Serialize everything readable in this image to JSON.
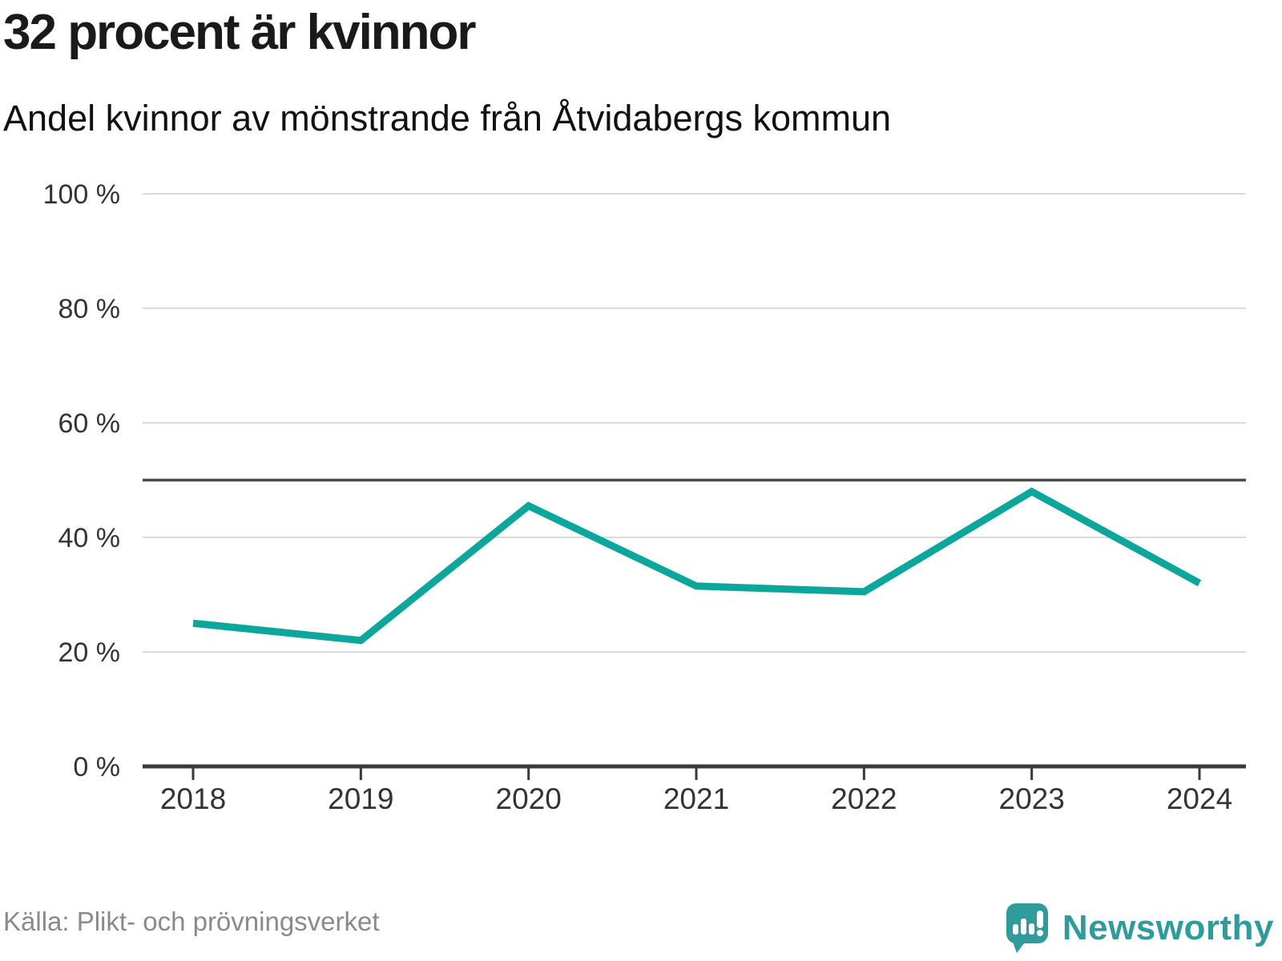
{
  "header": {
    "title": "32 procent är kvinnor",
    "subtitle": "Andel kvinnor av mönstrande från Åtvidabergs kommun"
  },
  "chart_data": {
    "type": "line",
    "title": "32 procent är kvinnor",
    "subtitle": "Andel kvinnor av mönstrande från Åtvidabergs kommun",
    "categories": [
      "2018",
      "2019",
      "2020",
      "2021",
      "2022",
      "2023",
      "2024"
    ],
    "series": [
      {
        "name": "Andel kvinnor av mönstrande",
        "values": [
          25,
          22,
          45.5,
          31.5,
          30.5,
          48,
          32
        ]
      }
    ],
    "unit": "%",
    "ylim": [
      0,
      100
    ],
    "yticks": [
      0,
      20,
      40,
      60,
      80,
      100
    ],
    "ytick_labels": [
      "0 %",
      "20 %",
      "40 %",
      "60 %",
      "80 %",
      "100 %"
    ],
    "reference_line": {
      "value": 50
    },
    "grid": true,
    "legend": false,
    "line_color": "#0ca69c"
  },
  "footer": {
    "source": "Källa: Plikt- och prövningsverket",
    "brand": "Newsworthy"
  },
  "colors": {
    "accent_teal": "#0ca69c",
    "logo_teal": "#2f9b9b",
    "grid": "#dadada",
    "reference_line": "#4a4a4a",
    "axis": "#3a3a3a",
    "tick_text": "#333333",
    "title_text": "#1a1a1a",
    "source_text": "#8a8a8a"
  }
}
